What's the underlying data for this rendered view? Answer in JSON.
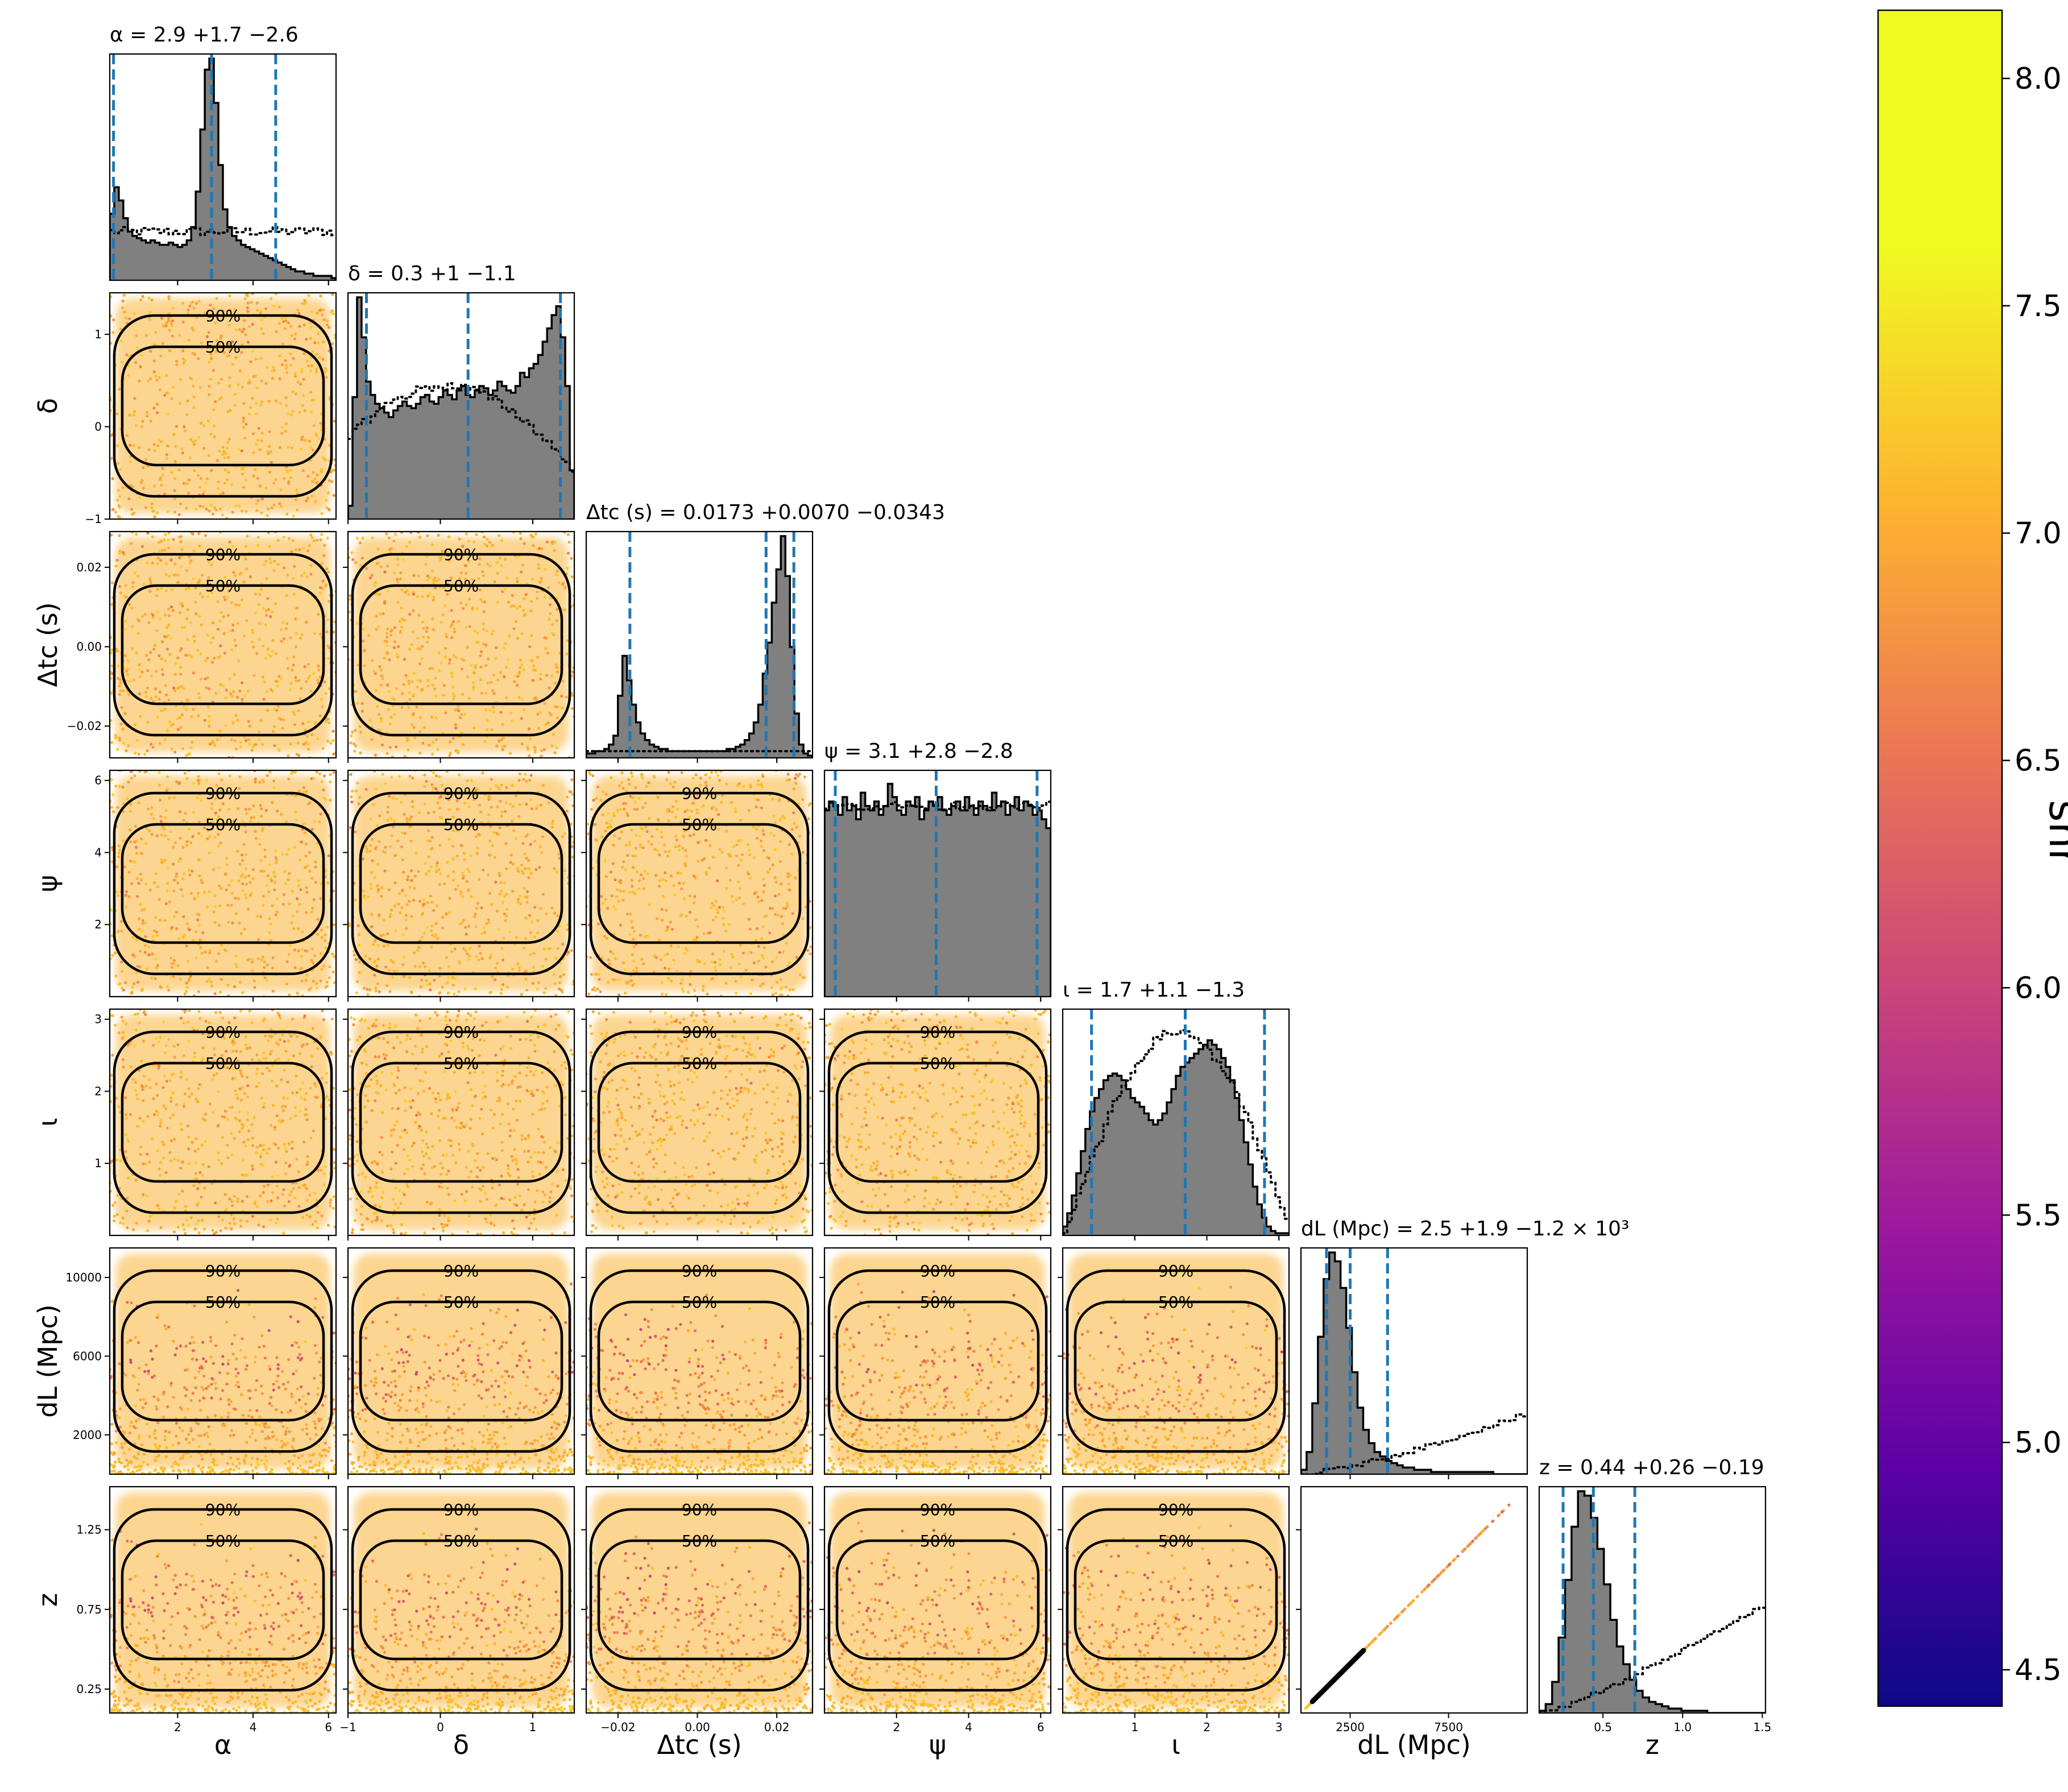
{
  "chart_data": {
    "type": "corner",
    "title": "",
    "colorbar": {
      "label": "snr",
      "range": [
        4.42,
        8.15
      ],
      "ticks": [
        "4.5",
        "5.0",
        "5.5",
        "6.0",
        "6.5",
        "7.0",
        "7.5",
        "8.0"
      ],
      "colormap": "plasma"
    },
    "parameters": [
      {
        "key": "alpha",
        "axis_label": "α",
        "title": "α = 2.9 +1.7 −2.6",
        "range": [
          0.2,
          6.2
        ],
        "ticks": [
          "2",
          "4",
          "6"
        ],
        "median": 2.9,
        "lower": 0.3,
        "upper": 4.6
      },
      {
        "key": "delta",
        "axis_label": "δ",
        "title": "δ = 0.3 +1 −1.1",
        "range": [
          -1.0,
          1.45
        ],
        "ticks": [
          "−1",
          "0",
          "1"
        ],
        "median": 0.3,
        "lower": -0.8,
        "upper": 1.3
      },
      {
        "key": "dtc",
        "axis_label": "Δtc (s)",
        "title": "Δtc (s) = 0.0173 +0.0070 −0.0343",
        "range": [
          -0.028,
          0.029
        ],
        "ticks": [
          "−0.02",
          "0.00",
          "0.02"
        ],
        "median": 0.0173,
        "lower": -0.017,
        "upper": 0.0243
      },
      {
        "key": "psi",
        "axis_label": "ψ",
        "title": "ψ = 3.1 +2.8 −2.8",
        "range": [
          0.0,
          6.28
        ],
        "ticks": [
          "2",
          "4",
          "6"
        ],
        "median": 3.1,
        "lower": 0.3,
        "upper": 5.9
      },
      {
        "key": "iota",
        "axis_label": "ι",
        "title": "ι = 1.7 +1.1 −1.3",
        "range": [
          0.0,
          3.14
        ],
        "ticks": [
          "1",
          "2",
          "3"
        ],
        "median": 1.7,
        "lower": 0.4,
        "upper": 2.8
      },
      {
        "key": "dl",
        "axis_label": "dL (Mpc)",
        "title": "dL (Mpc) = 2.5 +1.9 −1.2 × 10³",
        "range": [
          0,
          11500
        ],
        "ticks": [
          "2500",
          "7500"
        ],
        "ticks_y": [
          "2000",
          "6000",
          "10000"
        ],
        "median": 2500,
        "lower": 1300,
        "upper": 4400
      },
      {
        "key": "z",
        "axis_label": "z",
        "title": "z = 0.44 +0.26 −0.19",
        "range": [
          0.1,
          1.52
        ],
        "ticks": [
          "0.5",
          "1.0",
          "1.5"
        ],
        "ticks_y": [
          "0.25",
          "0.75",
          "1.25"
        ],
        "median": 0.44,
        "lower": 0.25,
        "upper": 0.7
      }
    ],
    "contour_levels": [
      "50%",
      "90%"
    ],
    "histograms": {
      "alpha": [
        0.3,
        0.42,
        0.36,
        0.28,
        0.22,
        0.2,
        0.19,
        0.18,
        0.17,
        0.18,
        0.17,
        0.16,
        0.16,
        0.17,
        0.16,
        0.15,
        0.16,
        0.18,
        0.24,
        0.4,
        0.68,
        0.95,
        1.0,
        0.8,
        0.52,
        0.32,
        0.24,
        0.2,
        0.18,
        0.16,
        0.15,
        0.14,
        0.13,
        0.12,
        0.11,
        0.1,
        0.09,
        0.08,
        0.07,
        0.06,
        0.05,
        0.04,
        0.04,
        0.03,
        0.03,
        0.02,
        0.02,
        0.02,
        0.02,
        0.01
      ],
      "delta": [
        0.06,
        0.55,
        1.0,
        0.82,
        0.62,
        0.56,
        0.52,
        0.5,
        0.48,
        0.46,
        0.49,
        0.51,
        0.53,
        0.51,
        0.5,
        0.52,
        0.55,
        0.56,
        0.53,
        0.52,
        0.55,
        0.58,
        0.56,
        0.54,
        0.58,
        0.6,
        0.56,
        0.55,
        0.58,
        0.6,
        0.59,
        0.56,
        0.58,
        0.62,
        0.6,
        0.58,
        0.57,
        0.6,
        0.66,
        0.64,
        0.68,
        0.7,
        0.74,
        0.8,
        0.86,
        0.92,
        0.96,
        0.82,
        0.6,
        0.22
      ],
      "dtc": [
        0.02,
        0.02,
        0.03,
        0.03,
        0.04,
        0.06,
        0.1,
        0.28,
        0.46,
        0.35,
        0.24,
        0.16,
        0.11,
        0.08,
        0.06,
        0.05,
        0.04,
        0.04,
        0.03,
        0.03,
        0.03,
        0.03,
        0.03,
        0.03,
        0.03,
        0.03,
        0.03,
        0.03,
        0.03,
        0.03,
        0.03,
        0.04,
        0.04,
        0.05,
        0.06,
        0.08,
        0.11,
        0.16,
        0.24,
        0.38,
        0.52,
        0.7,
        0.85,
        1.0,
        0.82,
        0.5,
        0.2,
        0.06,
        0.02,
        0.01
      ],
      "psi": [
        0.84,
        0.88,
        0.86,
        0.82,
        0.9,
        0.84,
        0.86,
        0.8,
        0.92,
        0.86,
        0.84,
        0.88,
        0.82,
        0.86,
        0.96,
        0.9,
        0.84,
        0.82,
        0.88,
        0.86,
        0.9,
        0.8,
        0.84,
        0.88,
        0.86,
        0.9,
        0.84,
        0.82,
        0.86,
        0.88,
        0.84,
        0.9,
        0.86,
        0.82,
        0.88,
        0.86,
        0.84,
        0.92,
        0.86,
        0.88,
        0.82,
        0.86,
        0.9,
        0.84,
        0.88,
        0.86,
        0.82,
        0.84,
        0.8,
        0.76
      ],
      "iota": [
        0.04,
        0.1,
        0.18,
        0.28,
        0.38,
        0.48,
        0.56,
        0.62,
        0.66,
        0.7,
        0.72,
        0.73,
        0.72,
        0.7,
        0.66,
        0.62,
        0.6,
        0.58,
        0.55,
        0.52,
        0.5,
        0.52,
        0.55,
        0.6,
        0.66,
        0.72,
        0.76,
        0.78,
        0.8,
        0.82,
        0.84,
        0.86,
        0.88,
        0.86,
        0.84,
        0.8,
        0.76,
        0.7,
        0.62,
        0.52,
        0.42,
        0.32,
        0.22,
        0.14,
        0.08,
        0.04,
        0.02,
        0.01,
        0.01,
        0.01
      ],
      "dl": [
        0.02,
        0.1,
        0.32,
        0.62,
        0.88,
        1.0,
        0.96,
        0.84,
        0.66,
        0.46,
        0.3,
        0.2,
        0.14,
        0.1,
        0.08,
        0.06,
        0.05,
        0.04,
        0.03,
        0.03,
        0.02,
        0.02,
        0.02,
        0.01,
        0.01,
        0.01,
        0.01,
        0.01,
        0.01,
        0.01,
        0.01,
        0.01,
        0.01,
        0.01,
        0.0,
        0.0,
        0.0,
        0.0,
        0.0,
        0.0
      ],
      "z": [
        0.01,
        0.04,
        0.14,
        0.34,
        0.6,
        0.84,
        1.0,
        0.98,
        0.88,
        0.74,
        0.58,
        0.42,
        0.3,
        0.22,
        0.15,
        0.1,
        0.07,
        0.05,
        0.04,
        0.03,
        0.02,
        0.02,
        0.01,
        0.01,
        0.01,
        0.01,
        0.0,
        0.0,
        0.0,
        0.0,
        0.0,
        0.0,
        0.0,
        0.0,
        0.0
      ]
    }
  }
}
